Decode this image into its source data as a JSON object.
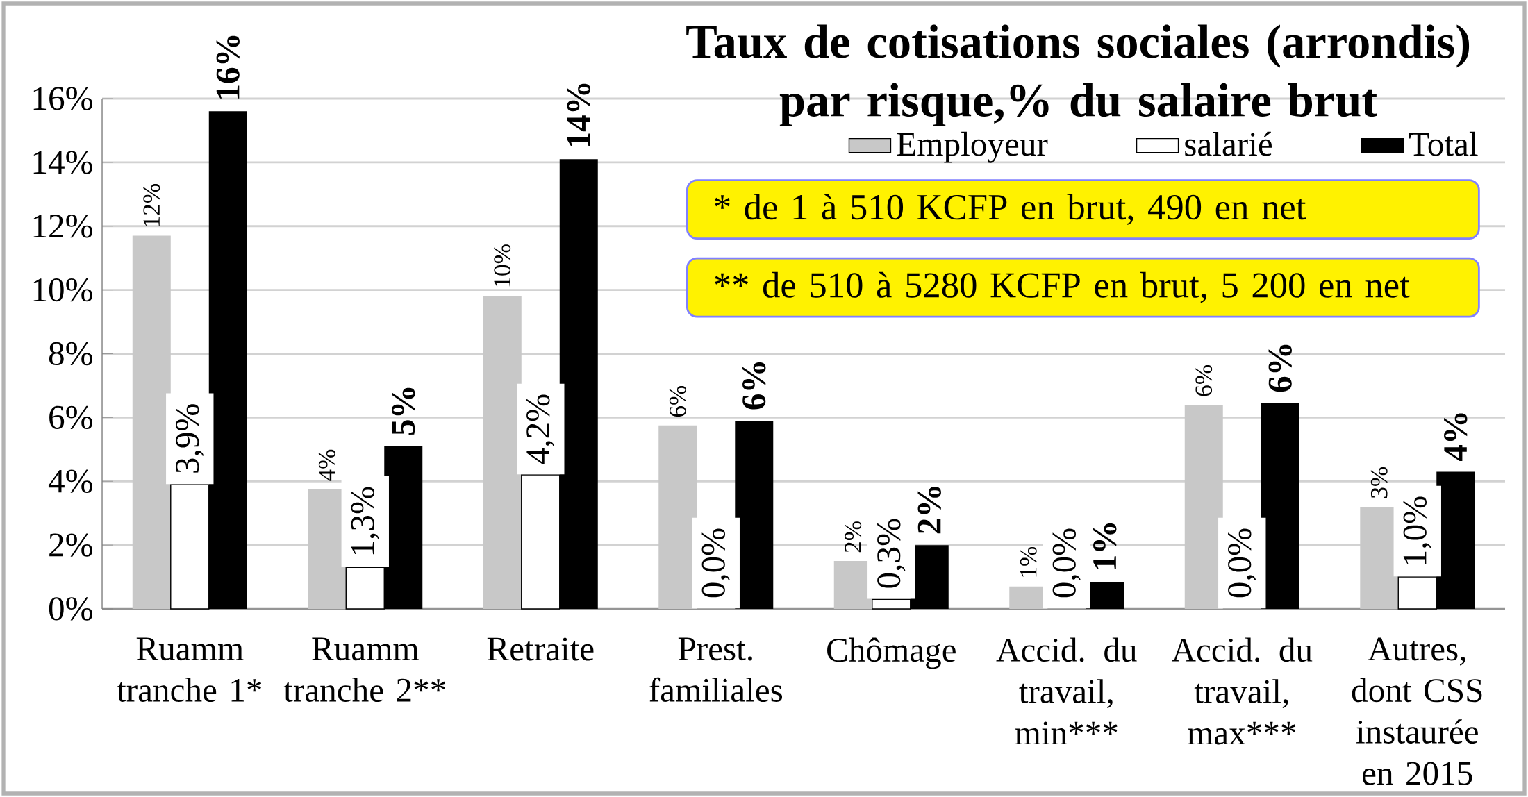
{
  "chart_data": {
    "type": "bar",
    "title": "Taux de cotisations sociales (arrondis) par risque,% du salaire brut",
    "categories": [
      "Ruamm tranche 1*",
      "Ruamm tranche 2**",
      "Retraite",
      "Prest. familiales",
      "Chômage",
      "Accid. du travail, min***",
      "Accid. du travail, max***",
      "Autres, dont CSS instaurée en 2015"
    ],
    "series": [
      {
        "name": "Employeur",
        "color": "#c8c8c8",
        "values": [
          11.7,
          3.75,
          9.8,
          5.75,
          1.5,
          0.7,
          6.4,
          3.2
        ],
        "value_labels": [
          "12%",
          "4%",
          "10%",
          "6%",
          "2%",
          "1%",
          "6%",
          "3%"
        ]
      },
      {
        "name": "salarié",
        "color": "#ffffff",
        "values": [
          3.9,
          1.3,
          4.2,
          0.0,
          0.3,
          0.0,
          0.0,
          1.0
        ],
        "value_labels": [
          "3,9%",
          "1,3%",
          "4,2%",
          "0,0%",
          "0,3%",
          "0,0%",
          "0,0%",
          "1,0%"
        ]
      },
      {
        "name": "Total",
        "color": "#000000",
        "values": [
          15.6,
          5.1,
          14.1,
          5.9,
          2.0,
          0.85,
          6.45,
          4.3
        ],
        "value_labels": [
          "16%",
          "5%",
          "14%",
          "6%",
          "2%",
          "1%",
          "6%",
          "4%"
        ]
      }
    ],
    "ylim": [
      0,
      16
    ],
    "yticks": [
      {
        "value": 0,
        "label": "0%"
      },
      {
        "value": 2,
        "label": "2%"
      },
      {
        "value": 4,
        "label": "4%"
      },
      {
        "value": 6,
        "label": "6%"
      },
      {
        "value": 8,
        "label": "8%"
      },
      {
        "value": 10,
        "label": "10%"
      },
      {
        "value": 12,
        "label": "12%"
      },
      {
        "value": 14,
        "label": "14%"
      },
      {
        "value": 16,
        "label": "16%"
      }
    ],
    "grid": "y",
    "legend": "top right",
    "annotations": [
      "* de 1 à 510 KCFP en brut, 490 en net",
      "** de 510 à 5280  KCFP en brut, 5 200 en net"
    ]
  }
}
